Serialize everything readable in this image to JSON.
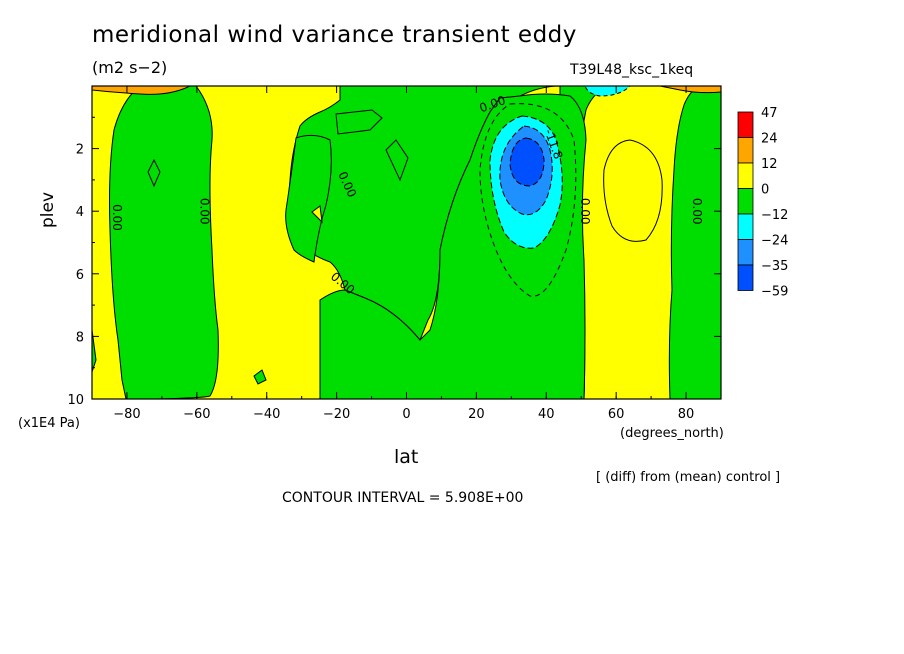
{
  "header": {
    "title": "meridional wind variance transient eddy",
    "units": "(m2 s−2)",
    "run": "T39L48_ksc_1keq"
  },
  "axes": {
    "ylabel": "plev",
    "yunits": "(x1E4 Pa)",
    "xlabel": "lat",
    "xunits": "(degrees_north)"
  },
  "footer": {
    "diff_note": "[ (diff) from (mean) control ]",
    "contour_interval": "CONTOUR INTERVAL = 5.908E+00"
  },
  "colors": {
    "yellow": "#ffff00",
    "green": "#00dd00",
    "cyan": "#00ffff",
    "mid_blue": "#1e90ff",
    "deep_blue": "#0050ff",
    "orange": "#ffa500",
    "red": "#ff0000"
  },
  "chart_data": {
    "type": "heatmap",
    "subtype": "filled contour",
    "xlim": [
      -90,
      90
    ],
    "ylim": [
      10,
      0
    ],
    "x_ticks": [
      -80,
      -60,
      -40,
      -20,
      0,
      20,
      40,
      60,
      80
    ],
    "y_ticks": [
      2,
      4,
      6,
      8,
      10
    ],
    "legend": {
      "placement": "right",
      "labels": [
        "47",
        "24",
        "12",
        "0",
        "−12",
        "−24",
        "−35",
        "−59"
      ],
      "colors": [
        "#ff0000",
        "#ffa500",
        "#ffff00",
        "#00dd00",
        "#00ffff",
        "#1e90ff",
        "#0050ff"
      ]
    },
    "contour_labels": [
      {
        "text": "0.00",
        "lat": -84,
        "plev": 4.2,
        "rotate": 90
      },
      {
        "text": "0.00",
        "lat": -59,
        "plev": 4.0,
        "rotate": 90
      },
      {
        "text": "0.00",
        "lat": -18,
        "plev": 3.2,
        "rotate": 65
      },
      {
        "text": "0.00",
        "lat": -19,
        "plev": 6.4,
        "rotate": 40
      },
      {
        "text": "0.00",
        "lat": 25,
        "plev": 0.7,
        "rotate": -20
      },
      {
        "text": "-11.8",
        "lat": 41,
        "plev": 1.9,
        "rotate": 70
      },
      {
        "text": "0.00",
        "lat": 50,
        "plev": 4.0,
        "rotate": 90
      },
      {
        "text": "0.00",
        "lat": 82,
        "plev": 4.0,
        "rotate": 90
      }
    ],
    "min_region": {
      "lat": 33,
      "plev": 2.6,
      "value_range": "-59 to -35"
    }
  }
}
